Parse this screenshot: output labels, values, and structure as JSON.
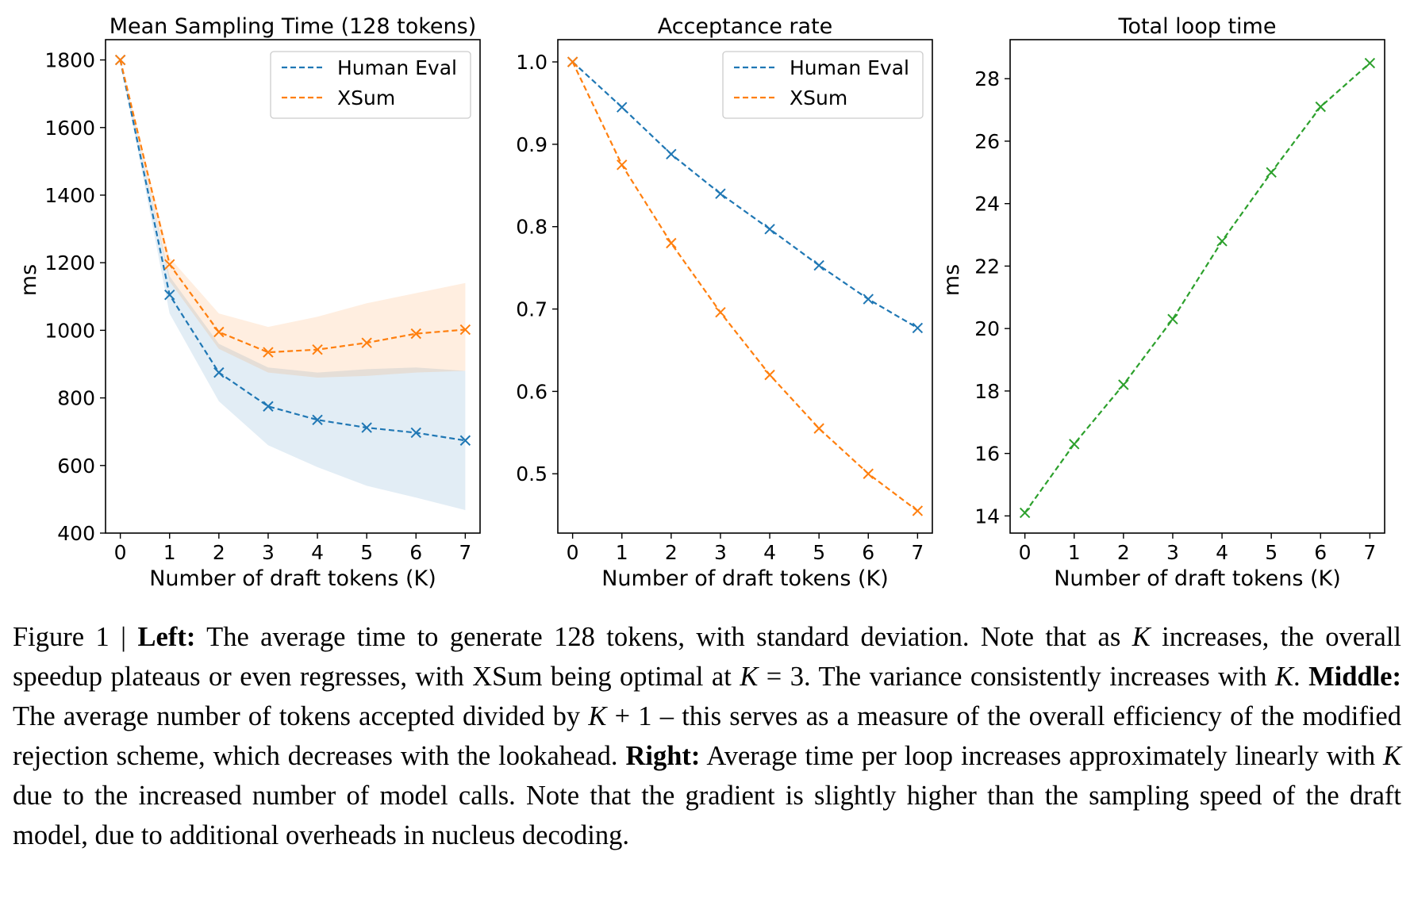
{
  "chart_data": [
    {
      "type": "line",
      "title": "Mean Sampling Time (128 tokens)",
      "xlabel": "Number of draft tokens (K)",
      "ylabel": "ms",
      "xlim": [
        -0.3,
        7.3
      ],
      "ylim": [
        400,
        1860
      ],
      "xticks": [
        "0",
        "1",
        "2",
        "3",
        "4",
        "5",
        "6",
        "7"
      ],
      "yticks": [
        "400",
        "600",
        "800",
        "1000",
        "1200",
        "1400",
        "1600",
        "1800"
      ],
      "x": [
        0,
        1,
        2,
        3,
        4,
        5,
        6,
        7
      ],
      "legend": "top-right",
      "series": [
        {
          "name": "Human Eval",
          "color": "#1f77b4",
          "values": [
            1800,
            1105,
            875,
            775,
            735,
            712,
            697,
            674
          ],
          "band_low": [
            1800,
            1050,
            790,
            660,
            595,
            540,
            505,
            468
          ],
          "band_high": [
            1800,
            1160,
            960,
            890,
            875,
            885,
            890,
            880
          ]
        },
        {
          "name": "XSum",
          "color": "#ff7f0e",
          "values": [
            1800,
            1195,
            995,
            935,
            943,
            963,
            990,
            1002
          ],
          "band_low": [
            1800,
            1145,
            945,
            875,
            860,
            865,
            875,
            880
          ],
          "band_high": [
            1800,
            1215,
            1050,
            1010,
            1040,
            1080,
            1110,
            1140
          ]
        }
      ]
    },
    {
      "type": "line",
      "title": "Acceptance rate",
      "xlabel": "Number of draft tokens (K)",
      "ylabel": "",
      "xlim": [
        -0.3,
        7.3
      ],
      "ylim": [
        0.428,
        1.027
      ],
      "xticks": [
        "0",
        "1",
        "2",
        "3",
        "4",
        "5",
        "6",
        "7"
      ],
      "yticks": [
        "0.5",
        "0.6",
        "0.7",
        "0.8",
        "0.9",
        "1.0"
      ],
      "x": [
        0,
        1,
        2,
        3,
        4,
        5,
        6,
        7
      ],
      "legend": "top-right",
      "series": [
        {
          "name": "Human Eval",
          "color": "#1f77b4",
          "values": [
            1.0,
            0.945,
            0.888,
            0.84,
            0.797,
            0.753,
            0.712,
            0.677
          ]
        },
        {
          "name": "XSum",
          "color": "#ff7f0e",
          "values": [
            1.0,
            0.875,
            0.78,
            0.696,
            0.62,
            0.555,
            0.5,
            0.455
          ]
        }
      ]
    },
    {
      "type": "line",
      "title": "Total loop time",
      "xlabel": "Number of draft tokens (K)",
      "ylabel": "ms",
      "xlim": [
        -0.3,
        7.3
      ],
      "ylim": [
        13.45,
        29.25
      ],
      "xticks": [
        "0",
        "1",
        "2",
        "3",
        "4",
        "5",
        "6",
        "7"
      ],
      "yticks": [
        "14",
        "16",
        "18",
        "20",
        "22",
        "24",
        "26",
        "28"
      ],
      "x": [
        0,
        1,
        2,
        3,
        4,
        5,
        6,
        7
      ],
      "legend": "none",
      "series": [
        {
          "name": "",
          "color": "#2ca02c",
          "values": [
            14.1,
            16.3,
            18.2,
            20.3,
            22.8,
            25.0,
            27.1,
            28.5
          ]
        }
      ]
    }
  ],
  "caption": {
    "fig": "Figure 1 | ",
    "left_label": "Left:",
    "left_text_1": " The average time to generate 128 tokens, with standard deviation. Note that as ",
    "k1": "K",
    "left_text_2": " increases, the overall speedup plateaus or even regresses, with XSum being optimal at ",
    "k2": "K",
    "left_text_3": " = 3. The variance consistently increases with ",
    "k3": "K",
    "left_text_4": ". ",
    "middle_label": "Middle:",
    "middle_text_1": " The average number of tokens accepted divided by ",
    "k4": "K",
    "middle_text_2": " + 1 – this serves as a measure of the overall efficiency of the modified rejection scheme, which decreases with the lookahead. ",
    "right_label": "Right:",
    "right_text_1": " Average time per loop increases approximately linearly with ",
    "k5": "K",
    "right_text_2": " due to the increased number of model calls. Note that the gradient is slightly higher than the sampling speed of the draft model, due to additional overheads in nucleus decoding."
  }
}
